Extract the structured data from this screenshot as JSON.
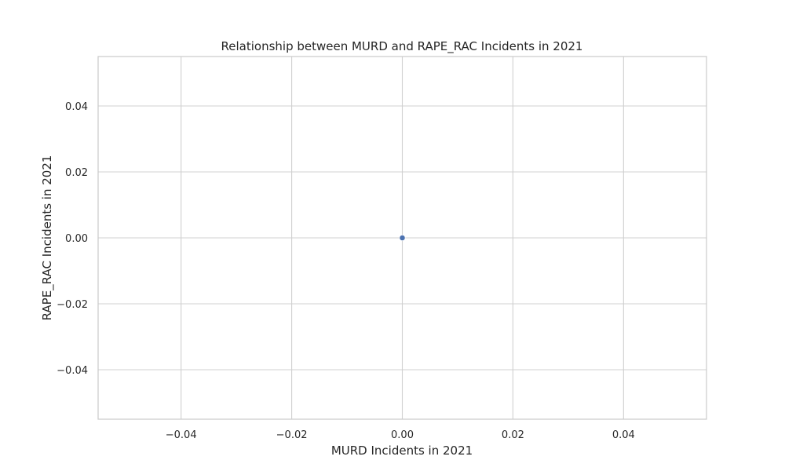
{
  "chart_data": {
    "type": "scatter",
    "title": "Relationship between MURD and RAPE_RAC Incidents in 2021",
    "xlabel": "MURD Incidents in 2021",
    "ylabel": "RAPE_RAC Incidents in 2021",
    "xlim": [
      -0.055,
      0.055
    ],
    "ylim": [
      -0.055,
      0.055
    ],
    "xticks": [
      -0.04,
      -0.02,
      0.0,
      0.02,
      0.04
    ],
    "yticks": [
      -0.04,
      -0.02,
      0.0,
      0.02,
      0.04
    ],
    "xtick_labels": [
      "−0.04",
      "−0.02",
      "0.00",
      "0.02",
      "0.04"
    ],
    "ytick_labels": [
      "−0.04",
      "−0.02",
      "0.00",
      "0.02",
      "0.04"
    ],
    "grid": true,
    "points": [
      {
        "x": 0,
        "y": 0
      }
    ],
    "colors": {
      "point": "#4c72b0",
      "grid": "#d0d0d0",
      "frame": "#cccccc"
    }
  }
}
